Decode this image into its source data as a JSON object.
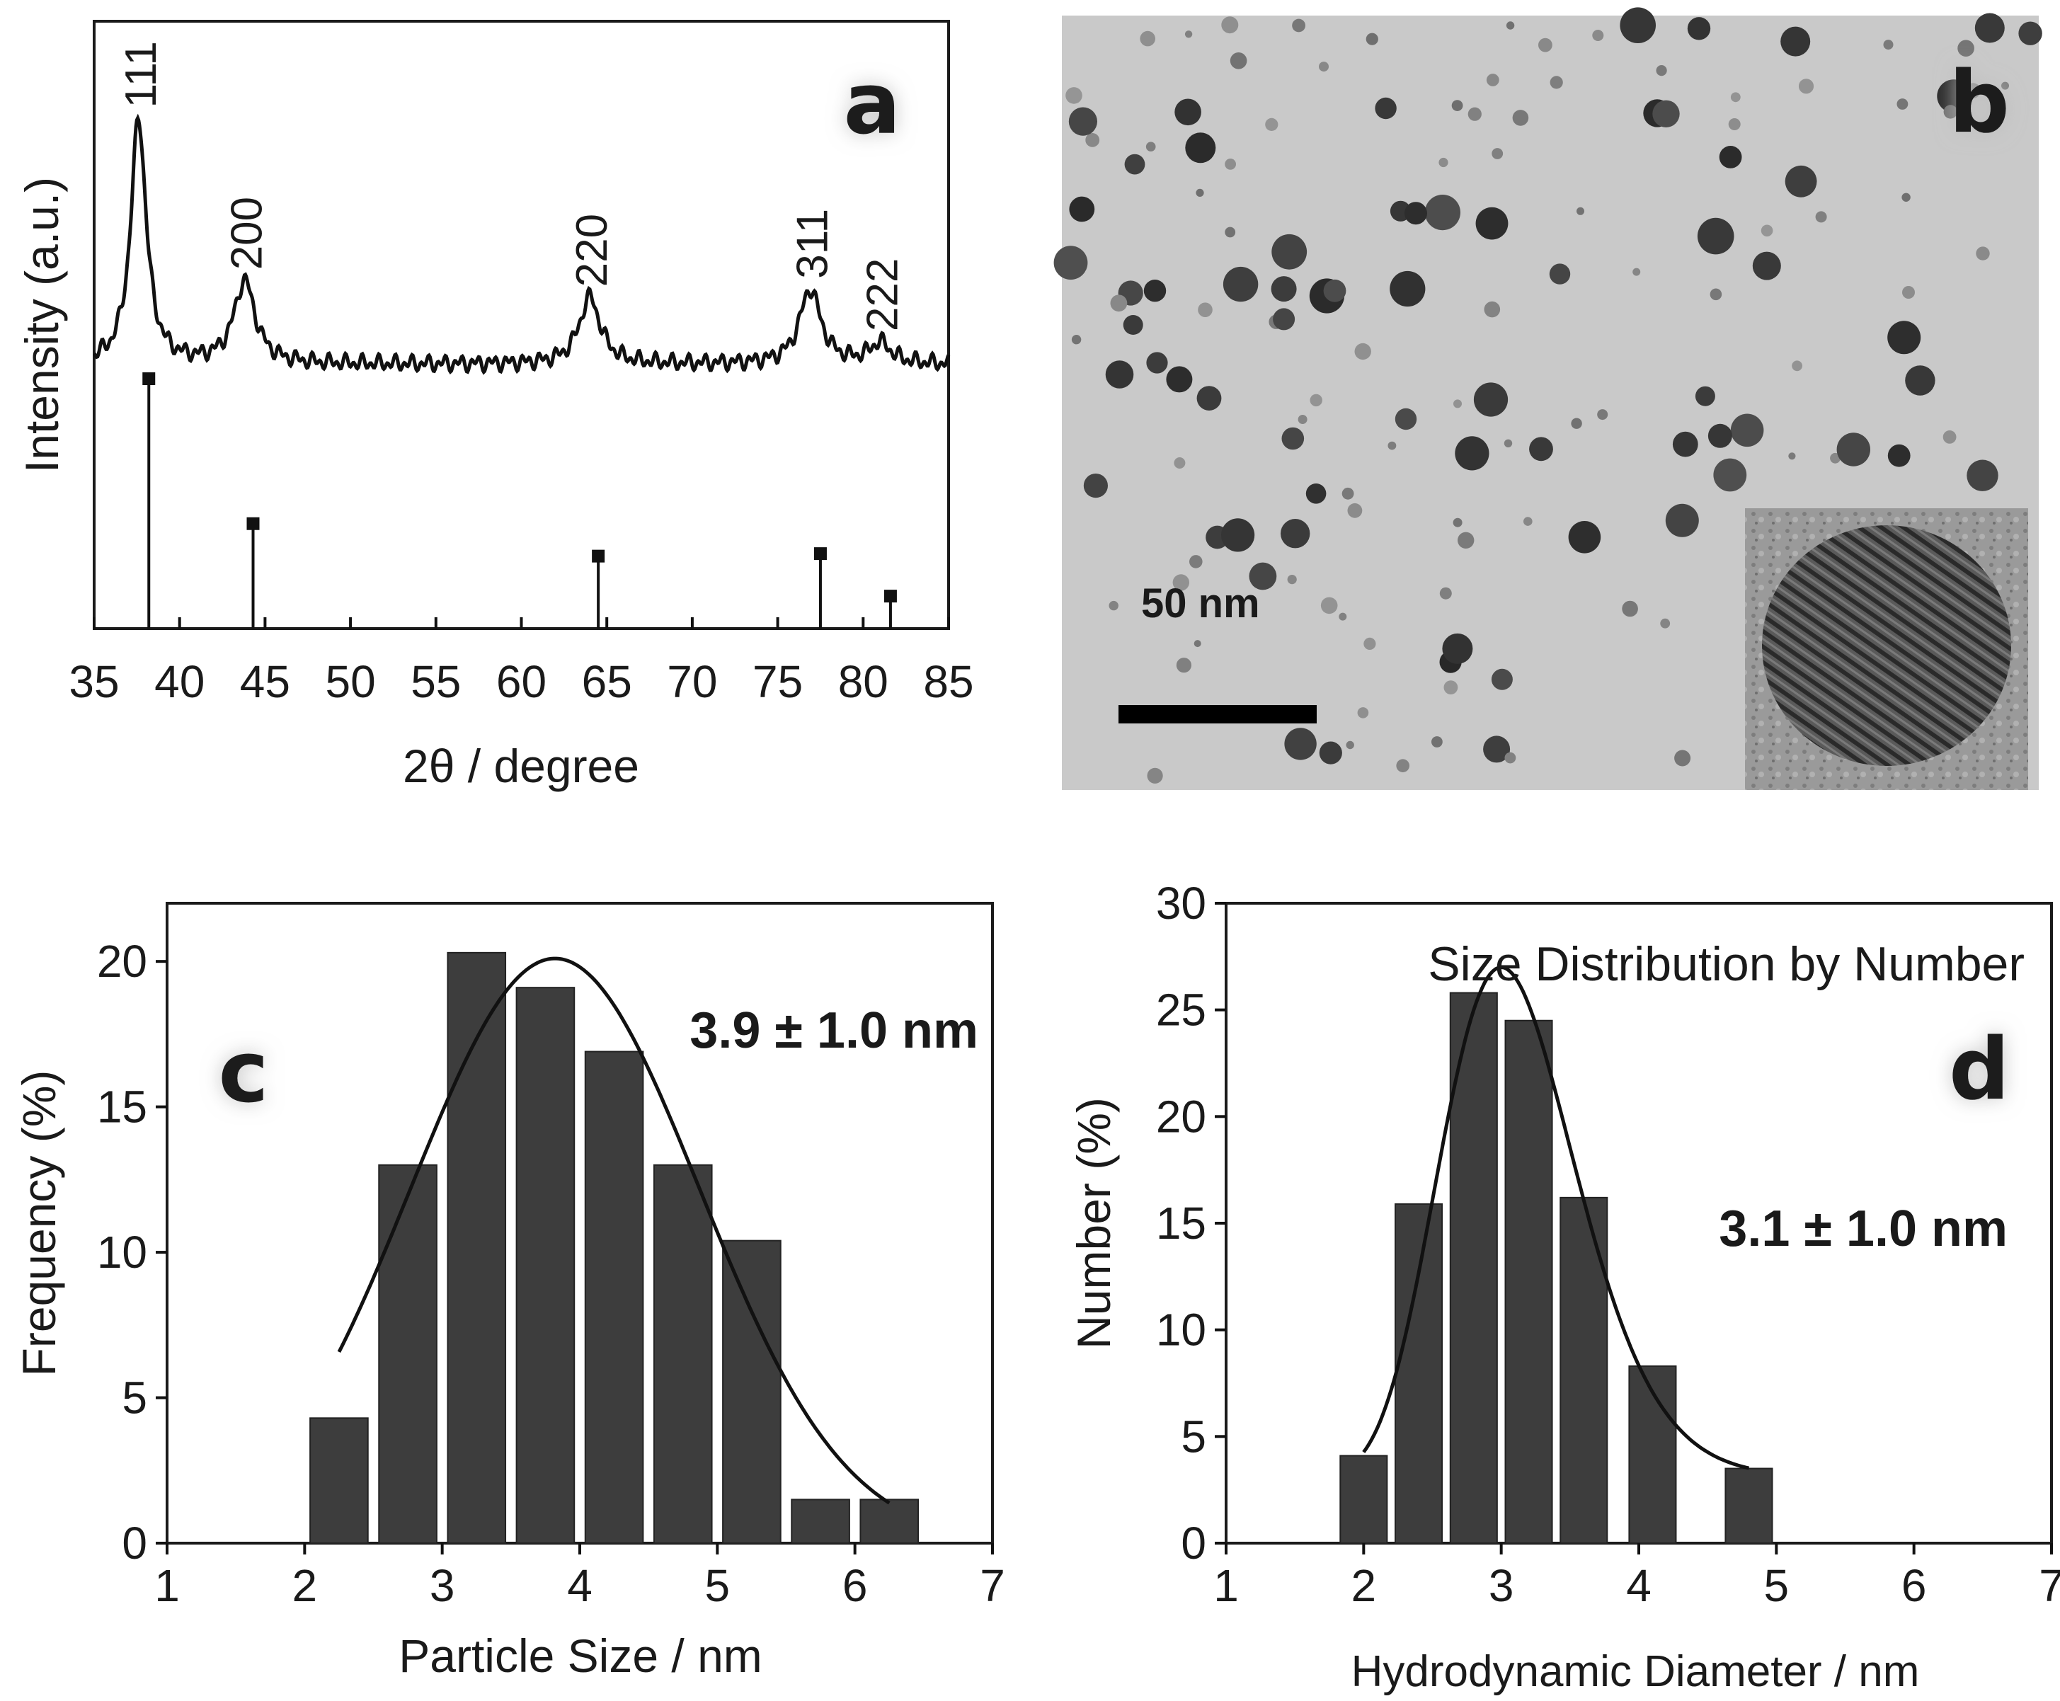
{
  "panels": {
    "a": {
      "letter": "a",
      "ylabel": "Intensity (a.u.)",
      "xlabel": "2θ / degree"
    },
    "b": {
      "letter": "b",
      "scale_bar_label": "50 nm"
    },
    "c": {
      "letter": "c",
      "ylabel": "Frequency (%)",
      "xlabel": "Particle Size / nm",
      "annotation": "3.9 ± 1.0 nm"
    },
    "d": {
      "letter": "d",
      "title": "Size Distribution by Number",
      "ylabel": "Number (%)",
      "xlabel": "Hydrodynamic Diameter / nm",
      "annotation": "3.1 ± 1.0 nm"
    }
  },
  "colors": {
    "bar_fill": "#3d3d3d",
    "line": "#111111",
    "tem_background": "#c9c9c9",
    "particle": "#3a3a3a"
  },
  "chart_data": [
    {
      "panel": "a",
      "type": "line",
      "xlabel": "2θ / degree",
      "ylabel": "Intensity (a.u.)",
      "xlim": [
        35,
        85
      ],
      "xticks": [
        "35",
        "40",
        "45",
        "50",
        "55",
        "60",
        "65",
        "70",
        "75",
        "80",
        "85"
      ],
      "grid": false,
      "peaks": [
        {
          "label": "111",
          "x": 37.6,
          "height": 0.95
        },
        {
          "label": "200",
          "x": 43.8,
          "height": 0.32
        },
        {
          "label": "220",
          "x": 64.0,
          "height": 0.26
        },
        {
          "label": "311",
          "x": 76.9,
          "height": 0.29
        },
        {
          "label": "222",
          "x": 81.0,
          "height": 0.08
        }
      ],
      "reference_lines": [
        {
          "x": 38.2,
          "height": 1.0
        },
        {
          "x": 44.3,
          "height": 0.42
        },
        {
          "x": 64.5,
          "height": 0.29
        },
        {
          "x": 77.5,
          "height": 0.3
        },
        {
          "x": 81.6,
          "height": 0.13
        }
      ]
    },
    {
      "panel": "c",
      "type": "bar",
      "xlabel": "Particle Size / nm",
      "ylabel": "Frequency (%)",
      "xlim": [
        1,
        7
      ],
      "ylim": [
        0,
        22
      ],
      "xticks": [
        "1",
        "2",
        "3",
        "4",
        "5",
        "6",
        "7"
      ],
      "yticks": [
        "0",
        "5",
        "10",
        "15",
        "20"
      ],
      "bar_width": 0.42,
      "x": [
        2.25,
        2.75,
        3.25,
        3.75,
        4.25,
        4.75,
        5.25,
        5.75,
        6.25
      ],
      "values": [
        4.3,
        13.0,
        20.3,
        19.1,
        16.9,
        13.0,
        10.4,
        1.5,
        1.5
      ],
      "fit": {
        "type": "gaussian",
        "peak": 20.1,
        "center": 3.82,
        "sigma": 1.05,
        "x_range": [
          2.25,
          6.25
        ]
      },
      "annotation": "3.9 ± 1.0 nm"
    },
    {
      "panel": "d",
      "type": "bar",
      "title": "Size Distribution by Number",
      "xlabel": "Hydrodynamic Diameter / nm",
      "ylabel": "Number (%)",
      "xlim": [
        1,
        7
      ],
      "ylim": [
        0,
        30
      ],
      "xticks": [
        "1",
        "2",
        "3",
        "4",
        "5",
        "6",
        "7"
      ],
      "yticks": [
        "0",
        "5",
        "10",
        "15",
        "20",
        "25",
        "30"
      ],
      "bar_width": 0.34,
      "x": [
        2.0,
        2.4,
        2.8,
        3.2,
        3.6,
        4.1,
        4.8
      ],
      "values": [
        4.1,
        15.9,
        25.8,
        24.5,
        16.2,
        8.3,
        3.5
      ],
      "fit": {
        "type": "lognormal",
        "peak": 27.0,
        "center": 3.0,
        "sigma": 0.165,
        "baseline": 3.1,
        "x_range": [
          2.0,
          4.8
        ]
      },
      "annotation": "3.1 ± 1.0 nm"
    }
  ]
}
